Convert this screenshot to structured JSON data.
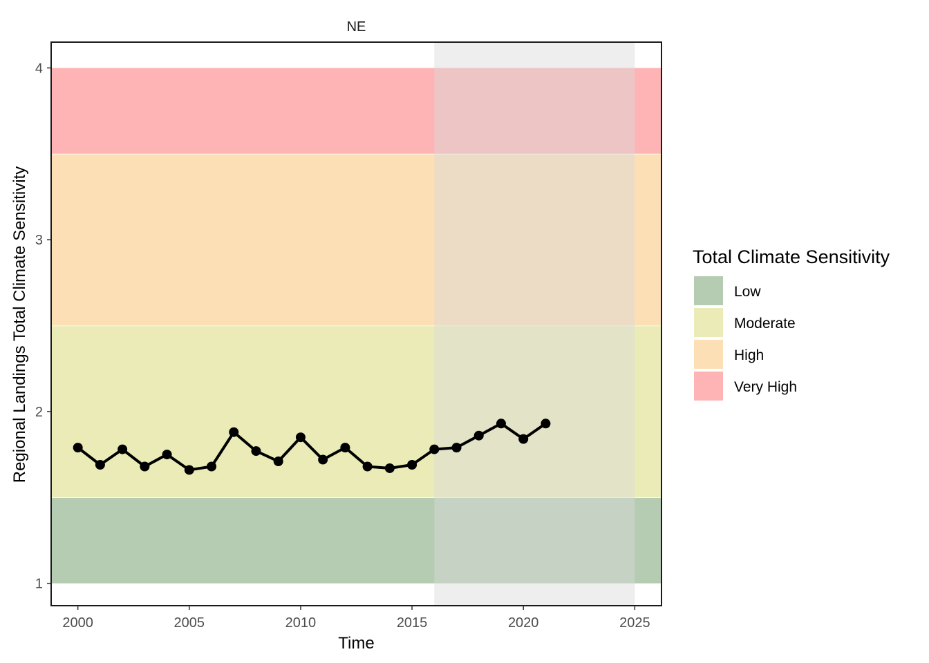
{
  "chart_data": {
    "type": "line",
    "facet_label": "NE",
    "xlabel": "Time",
    "ylabel": "Regional Landings Total Climate Sensitivity",
    "xlim": [
      1998.8,
      2026.2
    ],
    "ylim": [
      0.87,
      4.15
    ],
    "x_ticks": [
      2000,
      2005,
      2010,
      2015,
      2020,
      2025
    ],
    "y_ticks": [
      1,
      2,
      3,
      4
    ],
    "shaded_period": [
      2016,
      2025
    ],
    "shaded_color": "#d9d9d9",
    "line_color": "#000000",
    "bands": [
      {
        "label": "Low",
        "from": 1.0,
        "to": 1.5,
        "color": "#b5ccb2"
      },
      {
        "label": "Moderate",
        "from": 1.5,
        "to": 2.5,
        "color": "#ebebb8"
      },
      {
        "label": "High",
        "from": 2.5,
        "to": 3.5,
        "color": "#fddfb5"
      },
      {
        "label": "Very High",
        "from": 3.5,
        "to": 4.0,
        "color": "#feb4b5"
      }
    ],
    "series": [
      {
        "x": [
          2000,
          2001,
          2002,
          2003,
          2004,
          2005,
          2006,
          2007,
          2008,
          2009,
          2010,
          2011,
          2012,
          2013,
          2014,
          2015,
          2016,
          2017,
          2018,
          2019,
          2020,
          2021
        ],
        "values": [
          1.79,
          1.69,
          1.78,
          1.68,
          1.75,
          1.66,
          1.68,
          1.88,
          1.77,
          1.71,
          1.85,
          1.72,
          1.79,
          1.68,
          1.67,
          1.69,
          1.78,
          1.79,
          1.86,
          1.93,
          1.84,
          1.93
        ]
      }
    ],
    "legend": {
      "title": "Total Climate Sensitivity",
      "position": "right",
      "items": [
        {
          "label": "Low",
          "color": "#b5ccb2"
        },
        {
          "label": "Moderate",
          "color": "#ebebb8"
        },
        {
          "label": "High",
          "color": "#fddfb5"
        },
        {
          "label": "Very High",
          "color": "#feb4b5"
        }
      ]
    }
  }
}
